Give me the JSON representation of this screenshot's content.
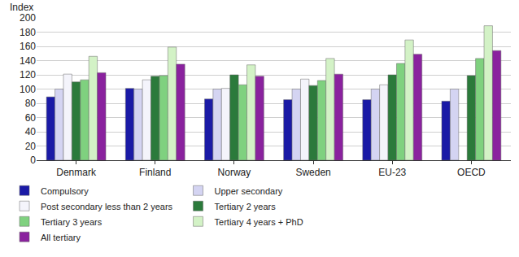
{
  "chart_data": {
    "type": "bar",
    "y_label": "Index",
    "categories": [
      "Denmark",
      "Finland",
      "Norway",
      "Sweden",
      "EU-23",
      "OECD"
    ],
    "series": [
      {
        "name": "Compulsory",
        "color": "#1a1aa6",
        "values": [
          89,
          101,
          86,
          85,
          85,
          83
        ]
      },
      {
        "name": "Upper secondary",
        "color": "#d4d4f2",
        "values": [
          100,
          100,
          100,
          100,
          100,
          100
        ]
      },
      {
        "name": "Post secondary less than 2 years",
        "color": "#f4f4fb",
        "values": [
          121,
          113,
          101,
          114,
          106,
          null
        ]
      },
      {
        "name": "Tertiary 2 years",
        "color": "#2b7a3b",
        "values": [
          110,
          118,
          120,
          105,
          120,
          119
        ]
      },
      {
        "name": "Tertiary 3 years",
        "color": "#7fd17f",
        "values": [
          113,
          119,
          106,
          112,
          136,
          143
        ]
      },
      {
        "name": "Tertiary 4 years + PhD",
        "color": "#d3f2c6",
        "values": [
          146,
          159,
          134,
          143,
          169,
          189
        ]
      },
      {
        "name": "All tertiary",
        "color": "#8a229e",
        "values": [
          123,
          135,
          118,
          121,
          149,
          154
        ]
      }
    ],
    "ylim": [
      0,
      200
    ],
    "yticks": [
      0,
      20,
      40,
      60,
      80,
      100,
      120,
      140,
      160,
      180,
      200
    ],
    "grid": true,
    "legend": "bottom"
  }
}
